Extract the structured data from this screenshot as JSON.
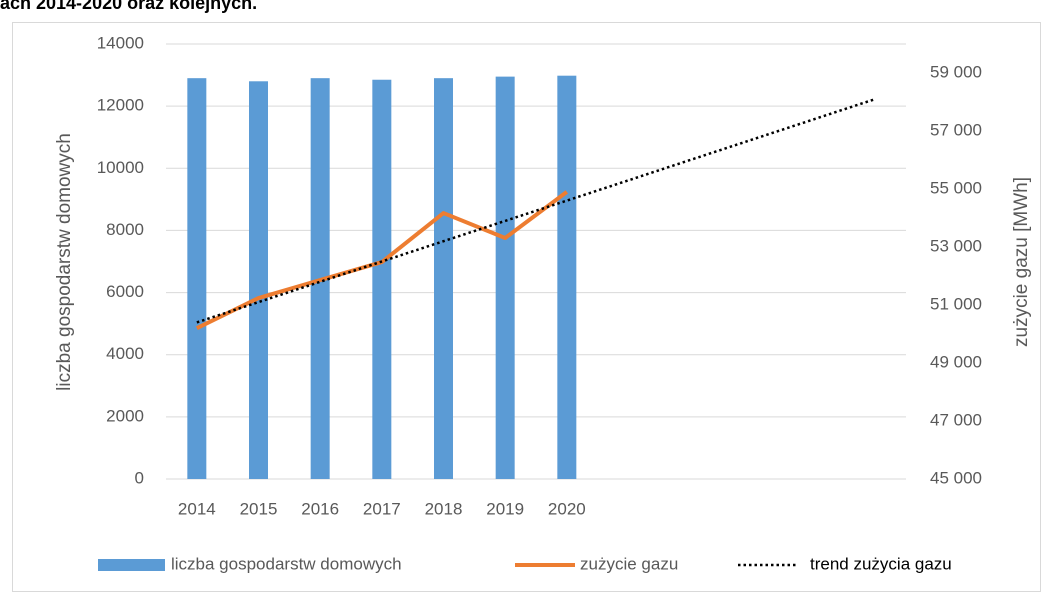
{
  "chart_data": {
    "type": "bar",
    "title": "ach 2014-2020 oraz kolejnych.",
    "categories": [
      "2014",
      "2015",
      "2016",
      "2017",
      "2018",
      "2019",
      "2020",
      null,
      null,
      null,
      null,
      null
    ],
    "ylabel": "liczba gospodarstw domowych",
    "y2label": "zużycie gazu [MWh]",
    "ylim": [
      0,
      14000
    ],
    "yticks": [
      0,
      2000,
      4000,
      6000,
      8000,
      10000,
      12000,
      14000
    ],
    "y2lim": [
      45000,
      60000
    ],
    "y2ticks": [
      {
        "value": 45000,
        "label": "45 000"
      },
      {
        "value": 47000,
        "label": "47 000"
      },
      {
        "value": 49000,
        "label": "49 000"
      },
      {
        "value": 51000,
        "label": "51 000"
      },
      {
        "value": 53000,
        "label": "53 000"
      },
      {
        "value": 55000,
        "label": "55 000"
      },
      {
        "value": 57000,
        "label": "57 000"
      },
      {
        "value": 59000,
        "label": "59 000"
      }
    ],
    "grid": true,
    "legend": "bottom",
    "series": [
      {
        "name": "liczba gospodarstw domowych",
        "type": "bar",
        "color": "#5b9bd5",
        "values": [
          12900,
          12800,
          12900,
          12850,
          12900,
          12950,
          12980,
          null,
          null,
          null,
          null,
          null
        ]
      },
      {
        "name": "zużycie gazu",
        "type": "line",
        "axis": "y2",
        "color": "#ed7d31",
        "values": [
          50200,
          51240,
          51860,
          52480,
          54170,
          53310,
          54900,
          null,
          null,
          null,
          null,
          null
        ]
      },
      {
        "name": "trend zużycia gazu",
        "type": "line",
        "axis": "y2",
        "color": "#000000",
        "line_style": "dotted",
        "values": [
          50400,
          51100,
          51800,
          52500,
          53200,
          53900,
          54600,
          55300,
          56000,
          56700,
          57400,
          58100
        ]
      }
    ]
  }
}
